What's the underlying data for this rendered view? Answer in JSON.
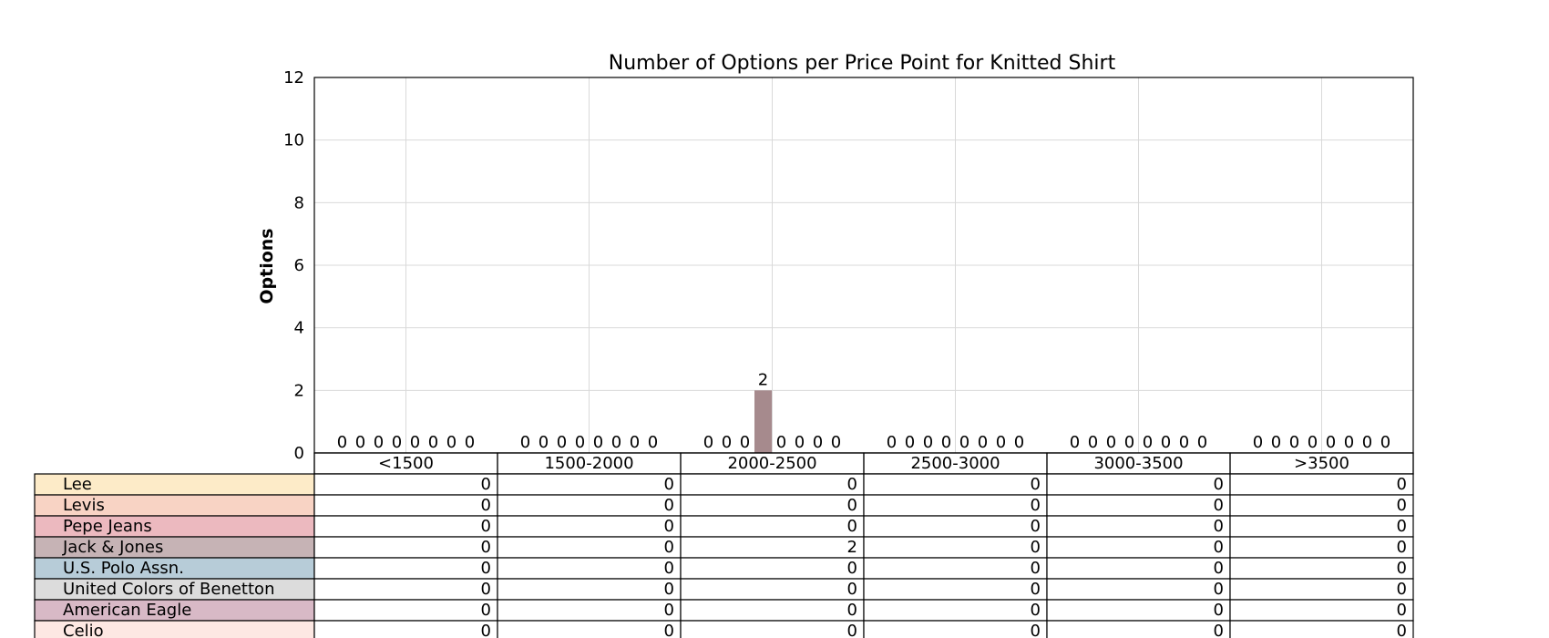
{
  "chart_data": {
    "type": "bar",
    "title": "Number of Options per Price Point for Knitted Shirt",
    "xlabel": "",
    "ylabel": "Options",
    "ylim": [
      0,
      12
    ],
    "yticks": [
      0,
      2,
      4,
      6,
      8,
      10,
      12
    ],
    "grid": true,
    "categories": [
      "<1500",
      "1500-2000",
      "2000-2500",
      "2500-3000",
      "3000-3500",
      ">3500"
    ],
    "series": [
      {
        "name": "Lee",
        "color": "#fdebc8",
        "values": [
          0,
          0,
          0,
          0,
          0,
          0
        ]
      },
      {
        "name": "Levis",
        "color": "#f8d3c4",
        "values": [
          0,
          0,
          0,
          0,
          0,
          0
        ]
      },
      {
        "name": "Pepe Jeans",
        "color": "#ecb9bf",
        "values": [
          0,
          0,
          0,
          0,
          0,
          0
        ]
      },
      {
        "name": "Jack & Jones",
        "color": "#a68a8d",
        "values": [
          0,
          0,
          2,
          0,
          0,
          0
        ]
      },
      {
        "name": "U.S. Polo Assn.",
        "color": "#b7ccd8",
        "values": [
          0,
          0,
          0,
          0,
          0,
          0
        ]
      },
      {
        "name": "United Colors of Benetton",
        "color": "#dcdcdc",
        "values": [
          0,
          0,
          0,
          0,
          0,
          0
        ]
      },
      {
        "name": "American Eagle",
        "color": "#d8b9c6",
        "values": [
          0,
          0,
          0,
          0,
          0,
          0
        ]
      },
      {
        "name": "Celio",
        "color": "#fde8e3",
        "values": [
          0,
          0,
          0,
          0,
          0,
          0
        ]
      }
    ],
    "table_row_colors": [
      "#fdebc8",
      "#f8d3c4",
      "#ecb9bf",
      "#c6b3b5",
      "#b7ccd8",
      "#dcdcdc",
      "#d8b9c6",
      "#fde8e3"
    ]
  }
}
